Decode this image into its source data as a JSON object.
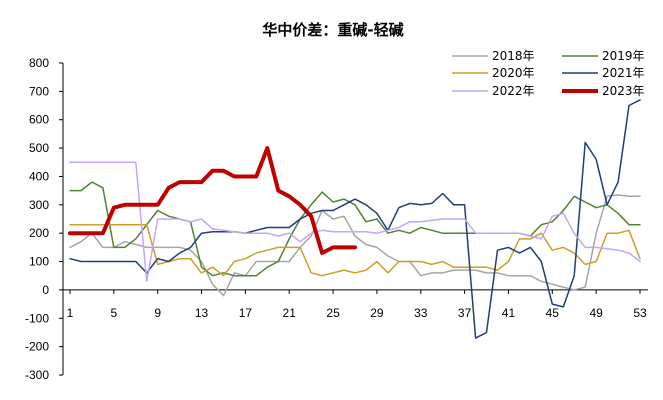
{
  "chart_data": {
    "type": "line",
    "title": "华中价差：重碱-轻碱",
    "xlabel": "",
    "ylabel": "",
    "xlim": [
      1,
      53
    ],
    "ylim": [
      -300,
      800
    ],
    "x_ticks": [
      1,
      5,
      9,
      13,
      17,
      21,
      25,
      29,
      33,
      37,
      41,
      45,
      49,
      53
    ],
    "y_ticks": [
      -300,
      -200,
      -100,
      0,
      100,
      200,
      300,
      400,
      500,
      600,
      700,
      800
    ],
    "legend_position": "top-right",
    "grid": false,
    "series": [
      {
        "name": "2018年",
        "color": "#a6a6a6",
        "width": 1.5,
        "values": [
          150,
          170,
          200,
          150,
          150,
          170,
          160,
          150,
          150,
          150,
          150,
          140,
          100,
          20,
          -20,
          60,
          50,
          100,
          100,
          100,
          100,
          150,
          190,
          280,
          250,
          260,
          190,
          160,
          150,
          120,
          100,
          100,
          50,
          60,
          60,
          70,
          70,
          70,
          60,
          60,
          50,
          50,
          50,
          30,
          20,
          10,
          0,
          10,
          200,
          330,
          335,
          330,
          330
        ]
      },
      {
        "name": "2019年",
        "color": "#548235",
        "width": 1.5,
        "values": [
          350,
          350,
          380,
          360,
          150,
          150,
          180,
          230,
          280,
          260,
          250,
          240,
          80,
          50,
          60,
          50,
          50,
          50,
          80,
          100,
          180,
          250,
          300,
          345,
          310,
          320,
          300,
          240,
          250,
          200,
          210,
          200,
          220,
          210,
          200,
          200,
          200,
          200,
          200,
          200,
          200,
          200,
          190,
          230,
          240,
          280,
          330,
          310,
          290,
          300,
          270,
          230,
          230
        ]
      },
      {
        "name": "2020年",
        "color": "#c9a227",
        "width": 1.5,
        "values": [
          230,
          230,
          230,
          230,
          230,
          230,
          230,
          230,
          90,
          100,
          110,
          110,
          60,
          80,
          50,
          100,
          110,
          130,
          140,
          150,
          150,
          150,
          60,
          50,
          60,
          70,
          60,
          70,
          100,
          60,
          100,
          100,
          100,
          90,
          100,
          80,
          80,
          80,
          80,
          70,
          100,
          180,
          180,
          200,
          140,
          150,
          130,
          90,
          100,
          200,
          200,
          210,
          110
        ]
      },
      {
        "name": "2021年",
        "color": "#1f3e7a",
        "width": 1.5,
        "values": [
          110,
          100,
          100,
          100,
          100,
          100,
          100,
          60,
          110,
          100,
          130,
          150,
          200,
          205,
          205,
          205,
          200,
          210,
          220,
          220,
          220,
          250,
          270,
          280,
          280,
          300,
          320,
          300,
          270,
          210,
          290,
          305,
          300,
          305,
          340,
          300,
          300,
          -170,
          -150,
          140,
          150,
          130,
          150,
          100,
          -50,
          -60,
          50,
          520,
          460,
          300,
          380,
          650,
          670
        ]
      },
      {
        "name": "2022年",
        "color": "#c5a3ff",
        "width": 1.5,
        "values": [
          450,
          450,
          450,
          450,
          450,
          450,
          450,
          30,
          250,
          250,
          250,
          240,
          250,
          215,
          210,
          205,
          200,
          200,
          200,
          190,
          200,
          170,
          200,
          210,
          205,
          205,
          205,
          205,
          200,
          210,
          220,
          240,
          240,
          245,
          250,
          250,
          250,
          200,
          200,
          200,
          200,
          200,
          190,
          180,
          260,
          270,
          200,
          150,
          150,
          145,
          140,
          130,
          100
        ]
      },
      {
        "name": "2023年",
        "color": "#c00000",
        "width": 4,
        "values": [
          200,
          200,
          200,
          200,
          290,
          300,
          300,
          300,
          300,
          360,
          380,
          380,
          380,
          420,
          420,
          400,
          400,
          400,
          500,
          350,
          330,
          300,
          260,
          130,
          150,
          150,
          150
        ]
      }
    ]
  }
}
